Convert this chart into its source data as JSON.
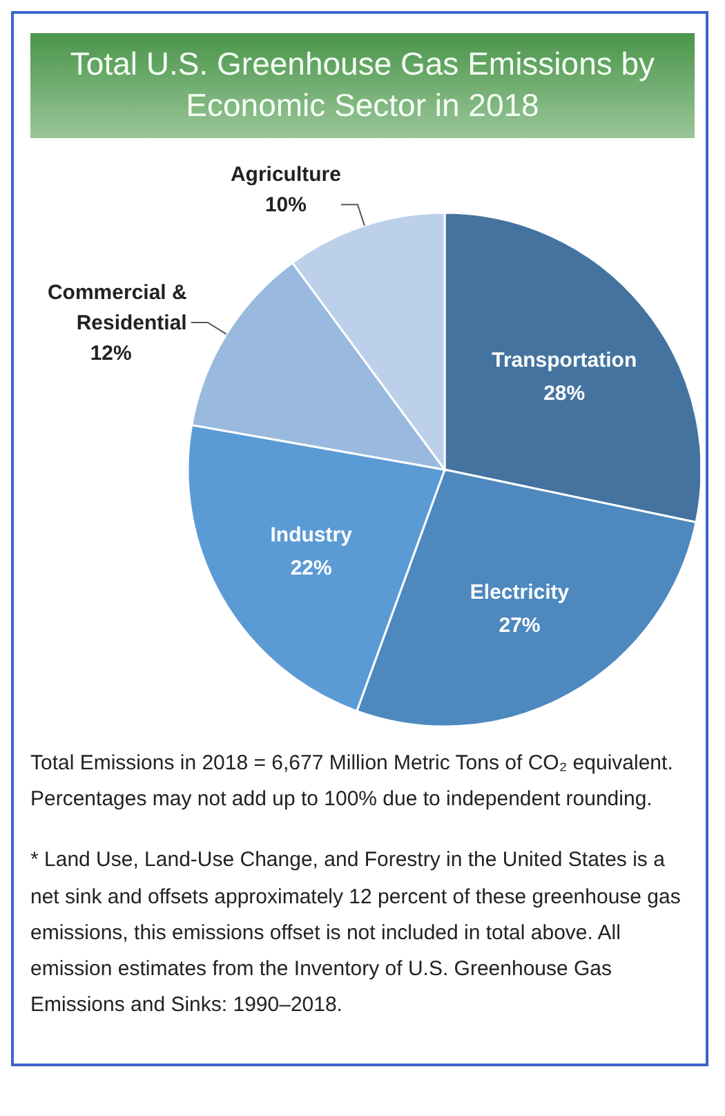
{
  "chart_data": {
    "type": "pie",
    "title": "Total U.S. Greenhouse Gas Emissions by Economic Sector in 2018",
    "categories": [
      "Transportation",
      "Electricity",
      "Industry",
      "Commercial & Residential",
      "Agriculture"
    ],
    "values": [
      28,
      27,
      22,
      12,
      10
    ],
    "value_labels": [
      "28%",
      "27%",
      "22%",
      "12%",
      "10%"
    ],
    "colors": [
      "#44739f",
      "#4d88bf",
      "#5b9bd5",
      "#9ab9de",
      "#bcd0ea"
    ],
    "legend": false,
    "annotations": [
      "Total Emissions in 2018 = 6,677 Million Metric Tons of CO₂ equivalent. Percentages may not add up to 100% due to independent rounding.",
      "* Land Use, Land-Use Change, and Forestry in the United States is a net sink and offsets approximately 12 percent of these greenhouse gas emissions, this emissions offset is not included in total above. All emission estimates from the Inventory of U.S. Greenhouse Gas Emissions and Sinks: 1990–2018."
    ]
  }
}
